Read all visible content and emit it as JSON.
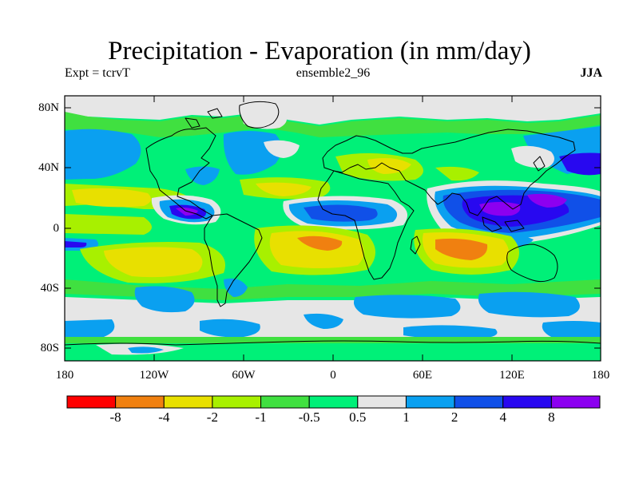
{
  "title": "Precipitation - Evaporation (in mm/day)",
  "subtitle_left": "Expt = tcrvT",
  "subtitle_center": "ensemble2_96",
  "subtitle_right": "JJA",
  "lat_ticks": [
    "80N",
    "40N",
    "0",
    "40S",
    "80S"
  ],
  "lon_ticks": [
    "180",
    "120W",
    "60W",
    "0",
    "60E",
    "120E",
    "180"
  ],
  "colorbar": {
    "colors": [
      "#ff0000",
      "#f08010",
      "#e8e000",
      "#a8f000",
      "#40e040",
      "#00f078",
      "#e6e6e6",
      "#0aa0f0",
      "#1050e8",
      "#2808f0",
      "#8c00f0"
    ],
    "labels": [
      "-8",
      "-4",
      "-2",
      "-1",
      "-0.5",
      "0.5",
      "1",
      "2",
      "4",
      "8"
    ]
  },
  "legend_colors": {
    "strong_deficit": "#f08010",
    "deficit": "#e8e000",
    "mild": "#00f078",
    "neutral": "#e6e6e6",
    "surplus": "#0aa0f0",
    "strong_surplus": "#2808f0"
  }
}
